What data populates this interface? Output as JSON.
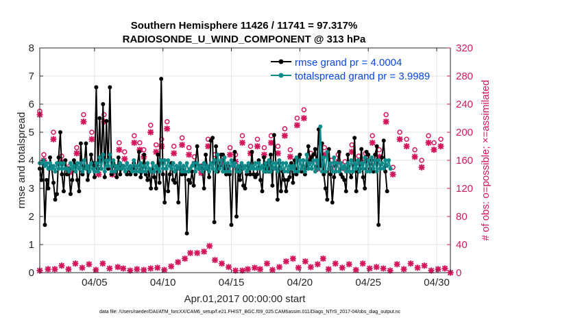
{
  "chart_data": {
    "type": "line",
    "title_line1": "Southern Hemisphere 11426 / 11741 = 97.317%",
    "title_line2": "RADIOSONDE_U_WIND_COMPONENT @ 313 hPa",
    "ylabel_left": "rmse and totalspread",
    "ylabel_right": "# of obs: o=possible; ×=assimilated",
    "xlabel": "Apr.01,2017 00:00:00 start",
    "footer": "data file: /Users/raeder/DAI/ATM_forcXX/CAM6_setup/f.e21.FHIST_BGC.f09_025.CAM6assim.011/Diags_NTrS_2017-04/obs_diag_output.nc",
    "xlim": [
      1.0,
      31.0
    ],
    "ylim_left": [
      0,
      8
    ],
    "ylim_right": [
      0,
      320
    ],
    "yticks_left": [
      "0",
      "1",
      "2",
      "3",
      "4",
      "5",
      "6",
      "7",
      "8"
    ],
    "yticks_right": [
      "0",
      "40",
      "80",
      "120",
      "160",
      "200",
      "240",
      "280",
      "320"
    ],
    "xticks": [
      {
        "value": 5,
        "label": "04/05"
      },
      {
        "value": 10,
        "label": "04/10"
      },
      {
        "value": 15,
        "label": "04/15"
      },
      {
        "value": 20,
        "label": "04/20"
      },
      {
        "value": 25,
        "label": "04/25"
      },
      {
        "value": 30,
        "label": "04/30"
      }
    ],
    "colors": {
      "rmse": "#000000",
      "spread": "#0e8a8a",
      "obs": "#d4155b",
      "legend_text": "#0b48d8"
    },
    "series": [
      {
        "name": "rmse grand pr = 4.0004",
        "axis": "left",
        "values": [
          3.7,
          3.3,
          4.0,
          1.7,
          3.3,
          3.0,
          4.1,
          3.7,
          3.2,
          2.6,
          2.8,
          4.1,
          5.0,
          3.5,
          2.9,
          4.0,
          3.5,
          3.7,
          2.8,
          3.3,
          4.0,
          3.8,
          3.3,
          2.9,
          4.6,
          3.5,
          3.8,
          4.6,
          3.3,
          3.6,
          4.2,
          3.9,
          3.4,
          6.6,
          3.7,
          5.5,
          3.7,
          6.0,
          3.4,
          5.4,
          3.7,
          6.6,
          3.5,
          3.9,
          3.8,
          3.4,
          4.1,
          3.5,
          3.8,
          3.8,
          3.6,
          3.5,
          3.7,
          3.5,
          3.7,
          3.9,
          3.5,
          3.8,
          4.3,
          3.4,
          3.6,
          4.2,
          3.5,
          3.3,
          3.6,
          3.0,
          3.9,
          3.4,
          3.0,
          4.2,
          3.2,
          6.9,
          3.5,
          2.5,
          3.7,
          2.9,
          3.5,
          3.9,
          3.3,
          3.2,
          3.8,
          2.5,
          3.7,
          3.5,
          3.8,
          3.5,
          1.4,
          3.3,
          3.2,
          3.6,
          3.1,
          3.9,
          4.5,
          3.7,
          3.8,
          3.7,
          3.0,
          4.2,
          3.7,
          3.4,
          4.7,
          4.8,
          1.8,
          4.5,
          3.6,
          3.8,
          4.2,
          4.2,
          3.7,
          3.5,
          3.8,
          3.5,
          1.7,
          3.8,
          4.3,
          2.0,
          3.7,
          3.3,
          3.8,
          3.1,
          3.0,
          3.5,
          3.8,
          3.5,
          4.3,
          3.5,
          3.4,
          3.5,
          4.0,
          3.3,
          2.9,
          4.1,
          3.6,
          3.9,
          3.6,
          4.2,
          3.1,
          4.9,
          3.9,
          2.6,
          3.9,
          2.9,
          3.6,
          3.3,
          2.9,
          3.3,
          3.4,
          3.9,
          3.2,
          4.0,
          3.5,
          4.1,
          4.2,
          3.6,
          4.0,
          3.5,
          3.8,
          4.5,
          4.0,
          4.1,
          4.2,
          4.4,
          3.8,
          5.1,
          3.8,
          4.6,
          3.5,
          3.0,
          2.6,
          4.4,
          3.5,
          2.5,
          3.4,
          3.8,
          3.9,
          4.3,
          3.5,
          3.4,
          3.3,
          2.9,
          4.2,
          3.6,
          3.4,
          3.6,
          4.8,
          2.9,
          3.6,
          3.7,
          4.4,
          3.4,
          3.0,
          4.3,
          4.2,
          3.7,
          4.0,
          3.6,
          4.2,
          4.5,
          1.7,
          3.7,
          4.1,
          4.7,
          3.6,
          2.9
        ],
        "x_start": 1.0,
        "x_step": 0.125
      },
      {
        "name": "totalspread grand pr = 3.9989",
        "axis": "left",
        "values": [
          3.9,
          3.9,
          4.0,
          3.8,
          3.9,
          3.7,
          3.9,
          3.7,
          3.8,
          3.6,
          3.9,
          3.7,
          3.9,
          3.7,
          3.9,
          3.7,
          3.7,
          3.6,
          3.9,
          3.7,
          3.8,
          3.6,
          3.9,
          3.7,
          3.9,
          3.6,
          4.0,
          3.7,
          3.8,
          3.6,
          3.9,
          3.7,
          3.6,
          3.9,
          3.6,
          4.1,
          3.7,
          4.2,
          3.6,
          4.0,
          3.8,
          4.2,
          3.6,
          4.0,
          3.6,
          3.8,
          3.7,
          3.9,
          3.7,
          3.8,
          3.6,
          3.9,
          3.7,
          3.8,
          3.6,
          4.0,
          3.6,
          3.8,
          3.6,
          3.9,
          3.6,
          3.8,
          3.6,
          3.9,
          3.7,
          3.6,
          3.9,
          3.6,
          3.8,
          3.7,
          3.6,
          4.0,
          3.7,
          4.0,
          3.7,
          4.0,
          3.8,
          3.7,
          3.9,
          3.6,
          3.8,
          3.7,
          3.9,
          3.6,
          3.8,
          3.6,
          3.9,
          3.6,
          3.7,
          3.8,
          3.9,
          3.6,
          3.9,
          3.7,
          3.8,
          3.6,
          3.9,
          3.7,
          3.8,
          3.6,
          3.9,
          3.7,
          4.0,
          3.6,
          4.2,
          3.7,
          4.0,
          3.6,
          4.1,
          3.6,
          3.9,
          3.6,
          4.0,
          3.8,
          3.9,
          3.6,
          3.8,
          3.6,
          3.9,
          3.7,
          3.8,
          3.6,
          3.9,
          3.7,
          3.8,
          3.7,
          3.9,
          3.7,
          3.9,
          3.7,
          3.8,
          3.6,
          3.9,
          3.6,
          4.0,
          3.6,
          3.9,
          3.7,
          3.9,
          3.6,
          4.0,
          3.7,
          3.9,
          3.6,
          3.9,
          3.6,
          3.8,
          3.7,
          3.8,
          3.6,
          4.1,
          3.6,
          4.0,
          3.7,
          4.0,
          3.6,
          4.2,
          3.7,
          3.9,
          3.7,
          4.0,
          3.6,
          4.0,
          3.7,
          5.2,
          3.6,
          4.1,
          3.6,
          4.3,
          3.7,
          3.9,
          3.6,
          4.1,
          3.6,
          3.9,
          3.6,
          3.9,
          3.7,
          3.8,
          3.6,
          3.9,
          3.6,
          4.0,
          3.6,
          3.9,
          3.7,
          4.0,
          3.6,
          3.9,
          3.7,
          4.1,
          3.6,
          4.0,
          3.6,
          4.1,
          3.7,
          4.0,
          3.6,
          4.0,
          3.7,
          3.9,
          3.7,
          4.0,
          3.8,
          4.0,
          3.7
        ],
        "x_start": 1.0,
        "x_step": 0.125
      },
      {
        "name": "obs possible",
        "axis": "right",
        "marker": "o",
        "points": [
          [
            1.0,
            230
          ],
          [
            1.3,
            168
          ],
          [
            2.0,
            200
          ],
          [
            2.6,
            166
          ],
          [
            3.2,
            152
          ],
          [
            3.7,
            178
          ],
          [
            4.2,
            225
          ],
          [
            4.8,
            200
          ],
          [
            5.3,
            150
          ],
          [
            5.7,
            225
          ],
          [
            6.3,
            148
          ],
          [
            6.8,
            185
          ],
          [
            7.2,
            172
          ],
          [
            7.9,
            195
          ],
          [
            8.3,
            185
          ],
          [
            8.6,
            175
          ],
          [
            9.1,
            210
          ],
          [
            9.5,
            182
          ],
          [
            9.9,
            190
          ],
          [
            10.3,
            215
          ],
          [
            10.8,
            180
          ],
          [
            11.4,
            192
          ],
          [
            11.9,
            178
          ],
          [
            12.3,
            165
          ],
          [
            12.8,
            152
          ],
          [
            13.3,
            190
          ],
          [
            13.8,
            168
          ],
          [
            14.4,
            165
          ],
          [
            14.9,
            178
          ],
          [
            15.3,
            168
          ],
          [
            15.8,
            195
          ],
          [
            16.4,
            180
          ],
          [
            16.9,
            190
          ],
          [
            17.4,
            178
          ],
          [
            17.9,
            195
          ],
          [
            18.4,
            180
          ],
          [
            18.9,
            205
          ],
          [
            19.3,
            175
          ],
          [
            19.8,
            220
          ],
          [
            20.3,
            232
          ],
          [
            20.8,
            170
          ],
          [
            21.3,
            158
          ],
          [
            21.8,
            178
          ],
          [
            22.3,
            160
          ],
          [
            22.8,
            168
          ],
          [
            23.3,
            158
          ],
          [
            23.8,
            182
          ],
          [
            24.3,
            166
          ],
          [
            24.8,
            170
          ],
          [
            25.3,
            195
          ],
          [
            25.8,
            175
          ],
          [
            26.3,
            225
          ],
          [
            26.8,
            150
          ],
          [
            27.3,
            200
          ],
          [
            27.8,
            190
          ],
          [
            28.4,
            175
          ],
          [
            28.9,
            160
          ],
          [
            29.4,
            195
          ],
          [
            29.8,
            185
          ],
          [
            30.3,
            190
          ]
        ]
      },
      {
        "name": "obs assimilated",
        "axis": "right",
        "marker": "x",
        "points": [
          [
            1.0,
            225
          ],
          [
            1.3,
            160
          ],
          [
            2.0,
            190
          ],
          [
            2.6,
            158
          ],
          [
            3.2,
            143
          ],
          [
            3.7,
            170
          ],
          [
            4.2,
            215
          ],
          [
            4.8,
            190
          ],
          [
            5.3,
            140
          ],
          [
            5.7,
            215
          ],
          [
            6.3,
            140
          ],
          [
            6.8,
            175
          ],
          [
            7.2,
            162
          ],
          [
            7.9,
            185
          ],
          [
            8.3,
            175
          ],
          [
            8.6,
            165
          ],
          [
            9.1,
            200
          ],
          [
            9.5,
            172
          ],
          [
            9.9,
            180
          ],
          [
            10.3,
            205
          ],
          [
            10.8,
            170
          ],
          [
            11.4,
            182
          ],
          [
            11.9,
            168
          ],
          [
            12.3,
            155
          ],
          [
            12.8,
            142
          ],
          [
            13.3,
            180
          ],
          [
            13.8,
            158
          ],
          [
            14.4,
            155
          ],
          [
            14.9,
            168
          ],
          [
            15.3,
            158
          ],
          [
            15.8,
            185
          ],
          [
            16.4,
            170
          ],
          [
            16.9,
            180
          ],
          [
            17.4,
            168
          ],
          [
            17.9,
            185
          ],
          [
            18.4,
            170
          ],
          [
            18.9,
            195
          ],
          [
            19.3,
            165
          ],
          [
            19.8,
            210
          ],
          [
            20.3,
            220
          ],
          [
            20.8,
            160
          ],
          [
            21.3,
            148
          ],
          [
            21.8,
            168
          ],
          [
            22.3,
            150
          ],
          [
            22.8,
            158
          ],
          [
            23.3,
            148
          ],
          [
            23.8,
            172
          ],
          [
            24.3,
            156
          ],
          [
            24.8,
            160
          ],
          [
            25.3,
            185
          ],
          [
            25.8,
            165
          ],
          [
            26.3,
            215
          ],
          [
            26.8,
            140
          ],
          [
            27.3,
            190
          ],
          [
            27.8,
            180
          ],
          [
            28.4,
            165
          ],
          [
            28.9,
            150
          ],
          [
            29.4,
            185
          ],
          [
            29.8,
            175
          ],
          [
            30.3,
            180
          ],
          [
            1.0,
            3
          ],
          [
            1.6,
            5
          ],
          [
            2.1,
            5
          ],
          [
            2.6,
            10
          ],
          [
            3.1,
            5
          ],
          [
            3.6,
            13
          ],
          [
            4.1,
            7
          ],
          [
            4.6,
            12
          ],
          [
            5.1,
            4
          ],
          [
            5.6,
            13
          ],
          [
            6.1,
            6
          ],
          [
            6.7,
            8
          ],
          [
            7.1,
            6
          ],
          [
            7.6,
            3
          ],
          [
            8.1,
            5
          ],
          [
            8.6,
            4
          ],
          [
            9.1,
            6
          ],
          [
            9.6,
            7
          ],
          [
            10.1,
            4
          ],
          [
            10.6,
            9
          ],
          [
            11.1,
            15
          ],
          [
            11.6,
            20
          ],
          [
            12.0,
            28
          ],
          [
            12.5,
            28
          ],
          [
            13.0,
            30
          ],
          [
            13.4,
            38
          ],
          [
            13.8,
            18
          ],
          [
            14.3,
            13
          ],
          [
            14.8,
            8
          ],
          [
            15.3,
            3
          ],
          [
            15.8,
            3
          ],
          [
            16.2,
            5
          ],
          [
            16.7,
            7
          ],
          [
            17.1,
            5
          ],
          [
            17.6,
            13
          ],
          [
            18.0,
            4
          ],
          [
            18.5,
            8
          ],
          [
            19.0,
            16
          ],
          [
            19.5,
            20
          ],
          [
            19.9,
            7
          ],
          [
            20.4,
            16
          ],
          [
            20.8,
            8
          ],
          [
            21.3,
            12
          ],
          [
            21.7,
            20
          ],
          [
            22.1,
            5
          ],
          [
            22.6,
            13
          ],
          [
            23.1,
            7
          ],
          [
            23.6,
            12
          ],
          [
            24.1,
            4
          ],
          [
            24.6,
            13
          ],
          [
            25.1,
            6
          ],
          [
            25.6,
            8
          ],
          [
            26.1,
            6
          ],
          [
            26.6,
            3
          ],
          [
            27.1,
            12
          ],
          [
            27.6,
            5
          ],
          [
            28.1,
            13
          ],
          [
            28.6,
            7
          ],
          [
            29.1,
            10
          ],
          [
            29.6,
            3
          ],
          [
            30.1,
            5
          ],
          [
            30.6,
            6
          ],
          [
            31.0,
            0
          ]
        ]
      }
    ]
  }
}
